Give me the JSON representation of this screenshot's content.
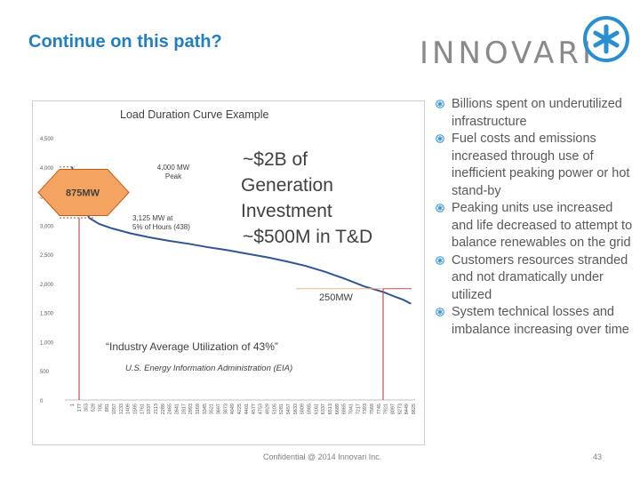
{
  "slide": {
    "title": "Continue on this path?",
    "logo_text": "INNOVARI",
    "footer": "Confidential @ 2014 Innovari Inc.",
    "page_number": "43",
    "accent_color": "#1f7fc2",
    "logo_color": "#8a8a8a"
  },
  "bullets": [
    "Billions spent on underutilized infrastructure",
    "Fuel costs and emissions increased through use of inefficient peaking power or hot stand-by",
    "Peaking units use increased and life decreased to attempt to balance renewables on the grid",
    "Customers resources stranded and not dramatically under utilized",
    "System technical losses and imbalance increasing over time"
  ],
  "chart_data": {
    "type": "line",
    "title": "Load Duration Curve Example",
    "xlabel": "",
    "ylabel": "",
    "ylim": [
      0,
      4500
    ],
    "yticks": [
      "4,500",
      "4,000",
      "3,500",
      "3,000",
      "2,500",
      "2,000",
      "1,500",
      "1,000",
      "500",
      "0"
    ],
    "xticks": [
      "1",
      "177",
      "353",
      "529",
      "705",
      "881",
      "1057",
      "1233",
      "1409",
      "1585",
      "1761",
      "1937",
      "2113",
      "2289",
      "2465",
      "2641",
      "2817",
      "2993",
      "3169",
      "3345",
      "3521",
      "3697",
      "3873",
      "4049",
      "4225",
      "4401",
      "4577",
      "4753",
      "4929",
      "5105",
      "5281",
      "5457",
      "5633",
      "5809",
      "5985",
      "6161",
      "6337",
      "6513",
      "6689",
      "6865",
      "7041",
      "7217",
      "7393",
      "7569",
      "7745",
      "7921",
      "8097",
      "8273",
      "8449",
      "8625"
    ],
    "series": [
      {
        "x": [
          1,
          60,
          150,
          300,
          438,
          700,
          1000,
          1500,
          2000,
          2500,
          3000,
          3500,
          4000,
          4500,
          5000,
          5500,
          6000,
          6500,
          7000,
          7500,
          8000,
          8300,
          8500,
          8700
        ],
        "values": [
          4000,
          3850,
          3650,
          3400,
          3125,
          3020,
          2950,
          2860,
          2790,
          2730,
          2680,
          2620,
          2570,
          2510,
          2450,
          2380,
          2300,
          2200,
          2080,
          1950,
          1850,
          1770,
          1720,
          1650
        ],
        "color": "#2f5597"
      }
    ],
    "grid": false,
    "annotations": {
      "peak_label": "4,000 MW Peak",
      "mid_label": "3,125 MW at 5% of Hours (438)",
      "diamond_label": "875MW",
      "investment_line1": "~$2B of Generation Investment",
      "investment_line2": "~$500M in T&D",
      "band_label": "250MW",
      "utilization_quote": "“Industry Average Utilization of 43%”",
      "source": "U.S. Energy Information Administration (EIA)",
      "diamond_color": "#f4a460",
      "annotation_line_color": "#c0504d"
    }
  }
}
